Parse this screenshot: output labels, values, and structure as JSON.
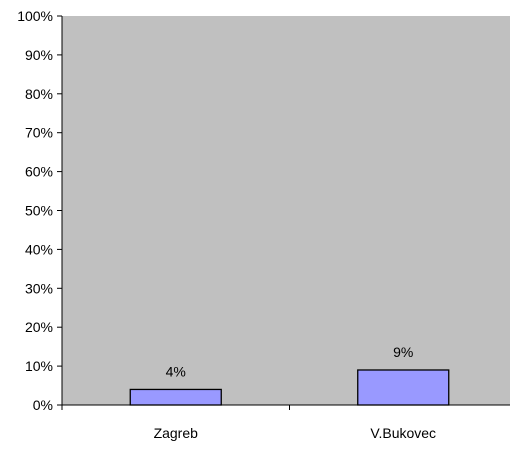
{
  "chart_data": {
    "type": "bar",
    "categories": [
      "Zagreb",
      "V.Bukovec"
    ],
    "values": [
      4,
      9
    ],
    "data_labels": [
      "4%",
      "9%"
    ],
    "ylim": [
      0,
      100
    ],
    "y_ticks": [
      0,
      10,
      20,
      30,
      40,
      50,
      60,
      70,
      80,
      90,
      100
    ],
    "y_tick_labels": [
      "0%",
      "10%",
      "20%",
      "30%",
      "40%",
      "50%",
      "60%",
      "70%",
      "80%",
      "90%",
      "100%"
    ],
    "grid": false,
    "legend": "none",
    "colors": {
      "plot_background": "#c0c0c0",
      "bar_fill": "#9999ff",
      "bar_stroke": "#000000",
      "axis": "#000000"
    }
  }
}
